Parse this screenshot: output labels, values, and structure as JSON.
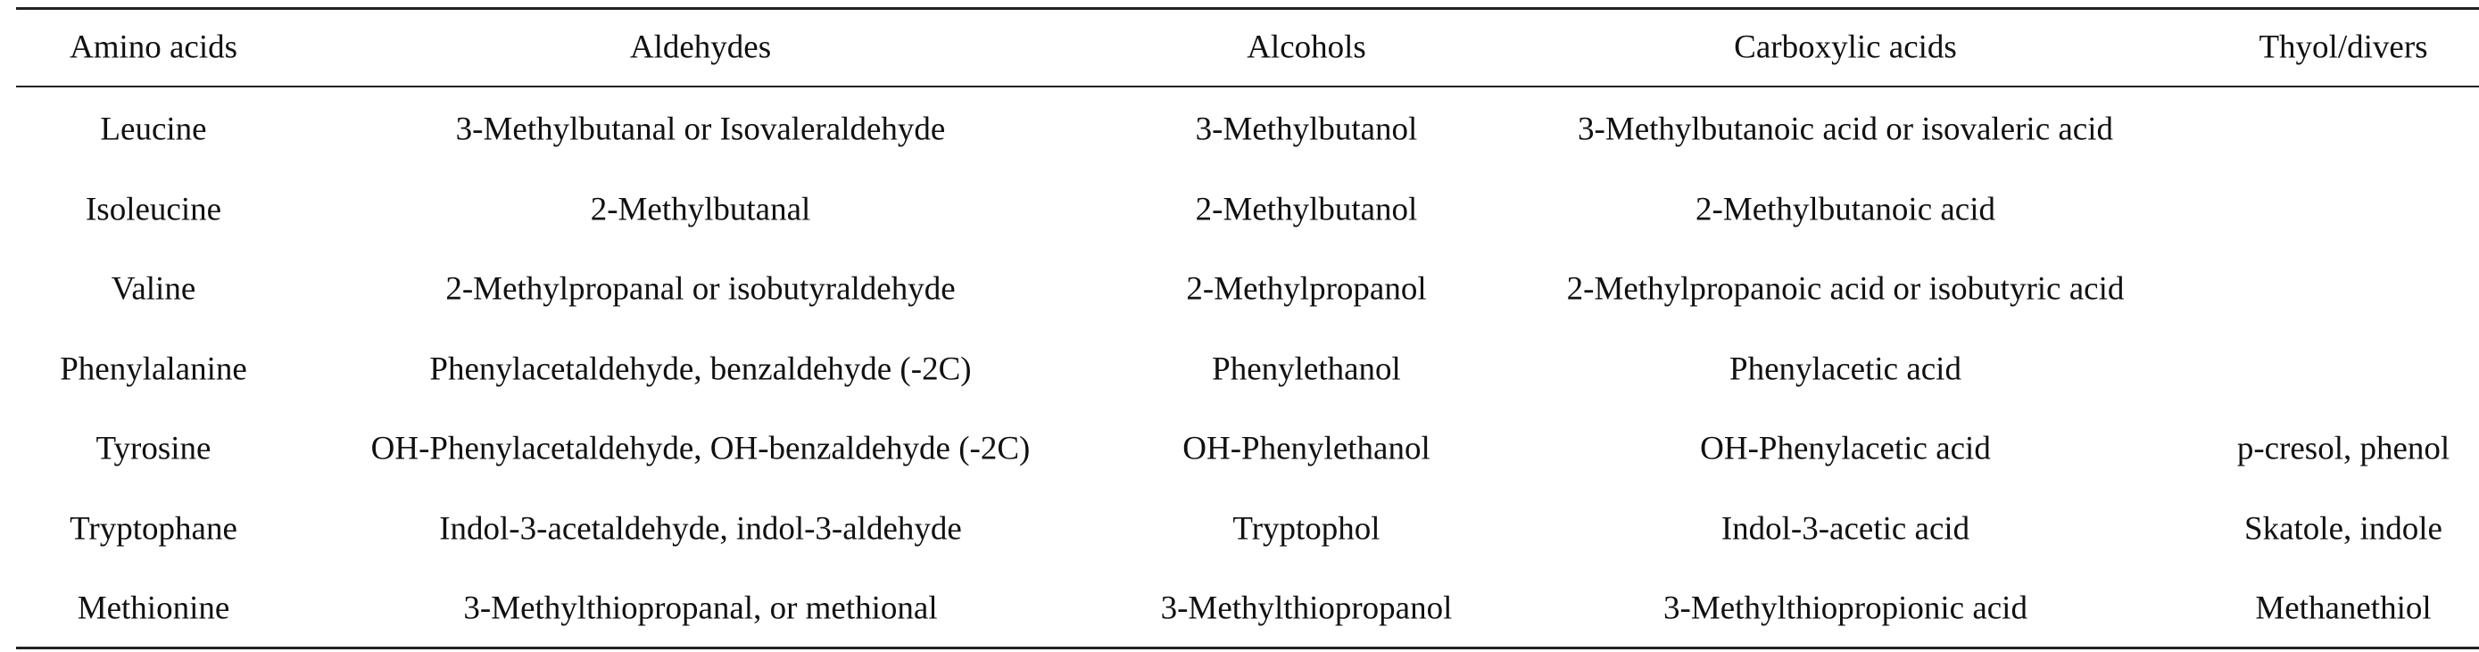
{
  "table": {
    "header": [
      "Amino acids",
      "Aldehydes",
      "Alcohols",
      "Carboxylic acids",
      "Thyol/divers"
    ],
    "rows": [
      [
        "Leucine",
        "3-Methylbutanal or Isovaleraldehyde",
        "3-Methylbutanol",
        "3-Methylbutanoic acid or isovaleric acid"
      ],
      [
        "Isoleucine",
        "2-Methylbutanal",
        "2-Methylbutanol",
        "2-Methylbutanoic acid"
      ],
      [
        "Valine",
        "2-Methylpropanal or isobutyraldehyde",
        "2-Methylpropanol",
        "2-Methylpropanoic acid or isobutyric acid"
      ],
      [
        "Phenylalanine",
        "Phenylacetaldehyde, benzaldehyde (-2C)",
        "Phenylethanol",
        "Phenylacetic acid"
      ],
      [
        "Tyrosine",
        "OH-Phenylacetaldehyde, OH-benzaldehyde (-2C)",
        "OH-Phenylethanol",
        "OH-Phenylacetic acid",
        "p-cresol, phenol"
      ],
      [
        "Tryptophane",
        "Indol-3-acetaldehyde, indol-3-aldehyde",
        "Tryptophol",
        "Indol-3-acetic acid",
        "Skatole, indole"
      ],
      [
        "Methionine",
        "3-Methylthiopropanal, or methional",
        "3-Methylthiopropanol",
        "3-Methylthiopropionic acid",
        "Methanethiol"
      ]
    ]
  }
}
